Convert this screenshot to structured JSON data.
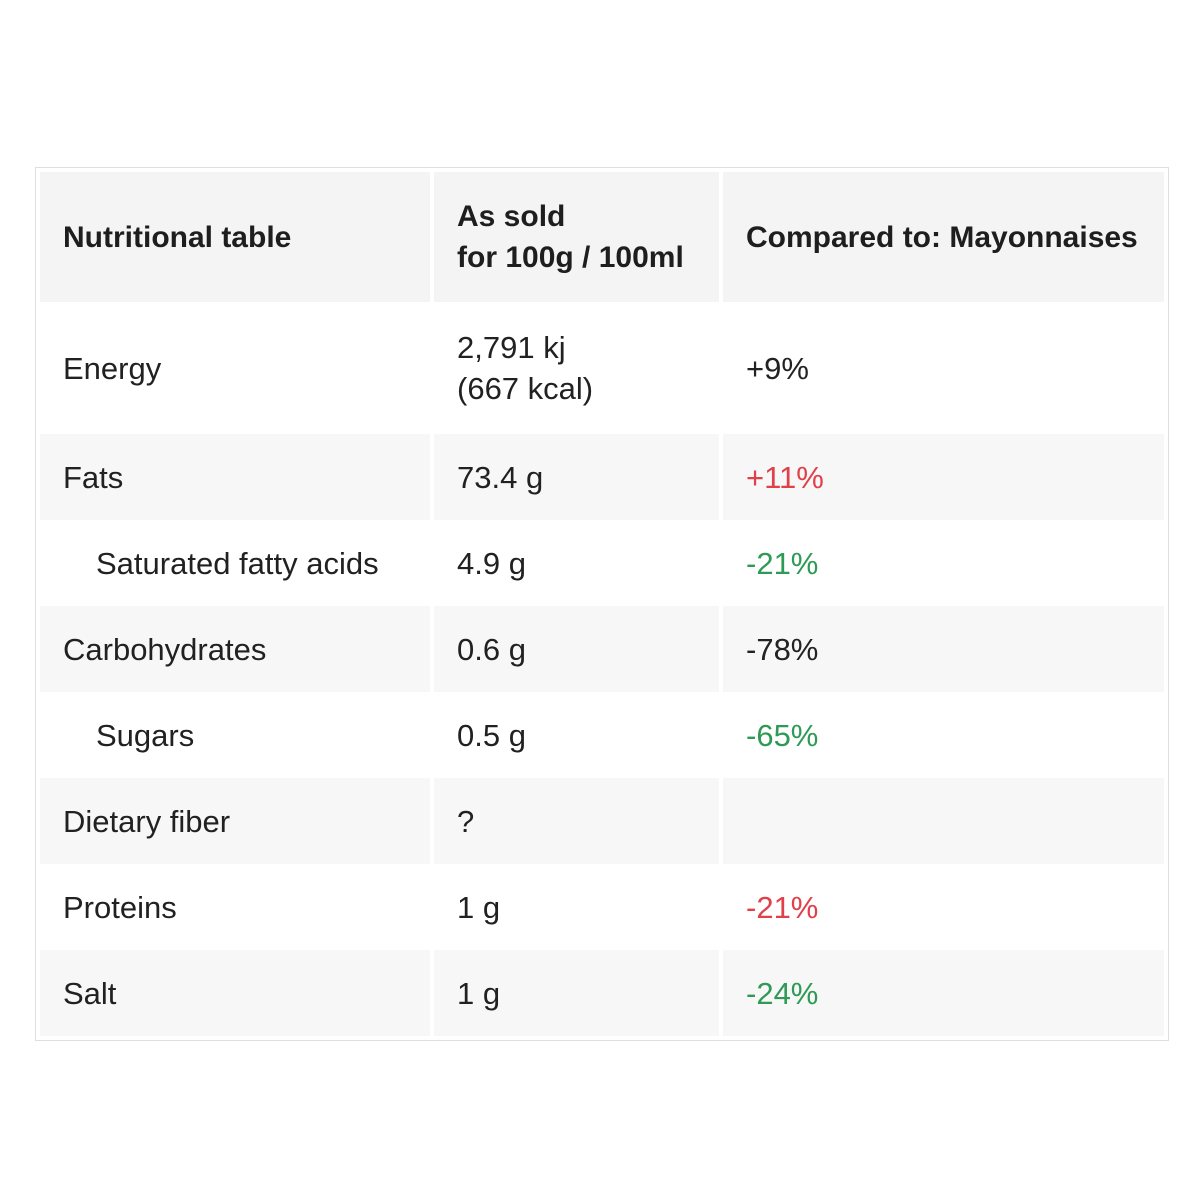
{
  "table": {
    "headers": {
      "col1": "Nutritional table",
      "col2_line1": "As sold",
      "col2_line2": "for 100g / 100ml",
      "col3": "Compared to: Mayonnaises"
    },
    "rows": [
      {
        "label": "Energy",
        "value_line1": "2,791 kj",
        "value_line2": "(667 kcal)",
        "compare": "+9%",
        "compare_color": "#222222"
      },
      {
        "label": "Fats",
        "value": "73.4 g",
        "compare": "+11%",
        "compare_color": "#e0404a"
      },
      {
        "label": "Saturated fatty acids",
        "value": "4.9 g",
        "compare": "-21%",
        "compare_color": "#2e9a55"
      },
      {
        "label": "Carbohydrates",
        "value": "0.6 g",
        "compare": "-78%",
        "compare_color": "#222222"
      },
      {
        "label": "Sugars",
        "value": "0.5 g",
        "compare": "-65%",
        "compare_color": "#2e9a55"
      },
      {
        "label": "Dietary fiber",
        "value": "?",
        "compare": "",
        "compare_color": "#222222"
      },
      {
        "label": "Proteins",
        "value": "1 g",
        "compare": "-21%",
        "compare_color": "#e0404a"
      },
      {
        "label": "Salt",
        "value": "1 g",
        "compare": "-24%",
        "compare_color": "#2e9a55"
      }
    ]
  }
}
